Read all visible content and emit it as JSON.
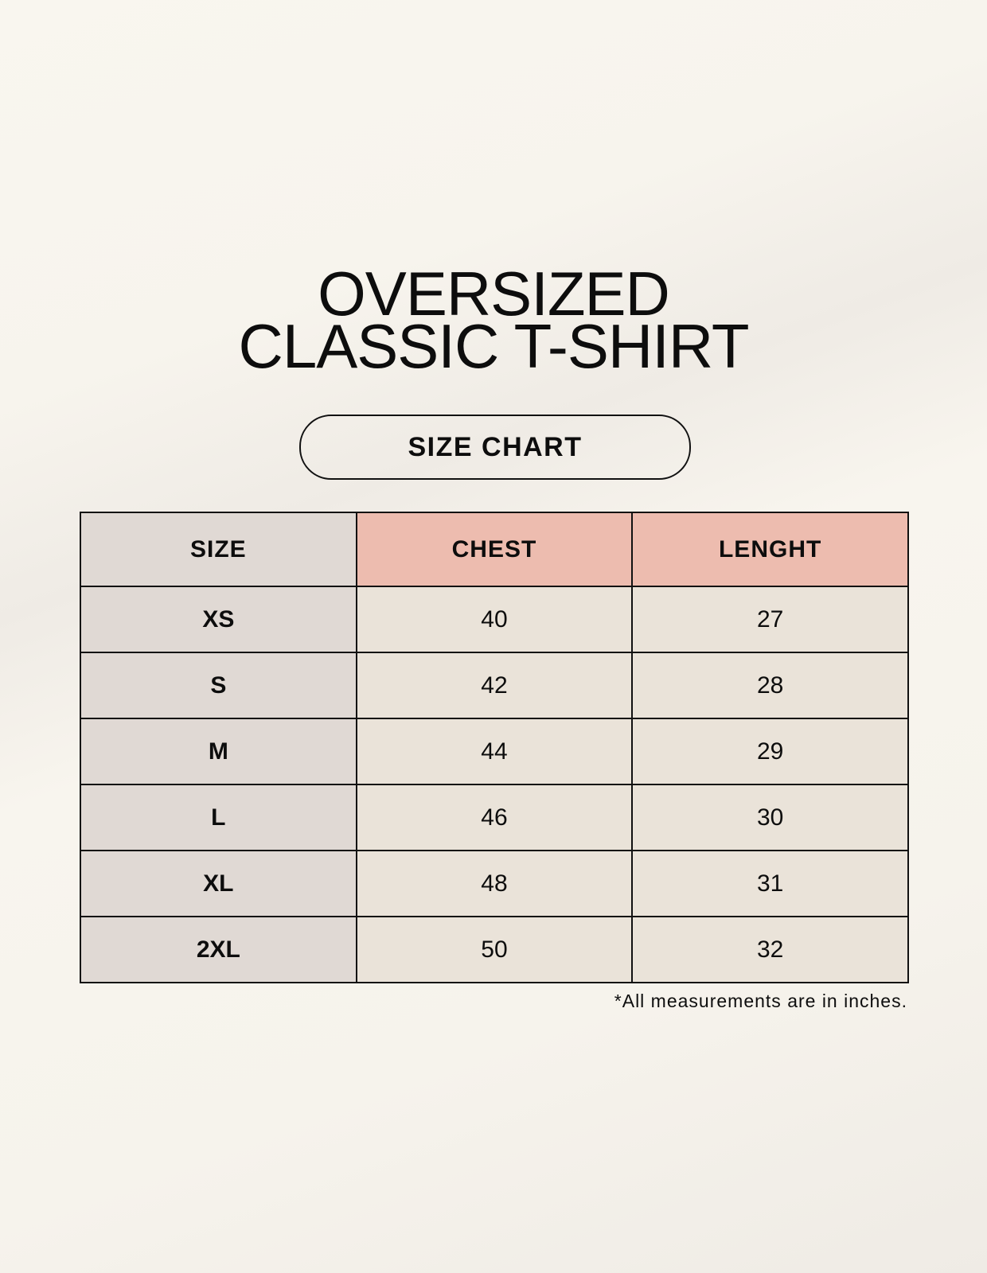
{
  "title": {
    "line1": "OVERSIZED",
    "line2": "CLASSIC T-SHIRT"
  },
  "subtitle": "SIZE CHART",
  "colors": {
    "size_column": "#e0d9d4",
    "header_accent": "#edbcaf",
    "cells": "#eae3d9",
    "border": "#111111"
  },
  "table": {
    "headers": [
      "SIZE",
      "CHEST",
      "LENGHT"
    ],
    "rows": [
      [
        "XS",
        "40",
        "27"
      ],
      [
        "S",
        "42",
        "28"
      ],
      [
        "M",
        "44",
        "29"
      ],
      [
        "L",
        "46",
        "30"
      ],
      [
        "XL",
        "48",
        "31"
      ],
      [
        "2XL",
        "50",
        "32"
      ]
    ]
  },
  "footnote": "*All measurements are in inches."
}
